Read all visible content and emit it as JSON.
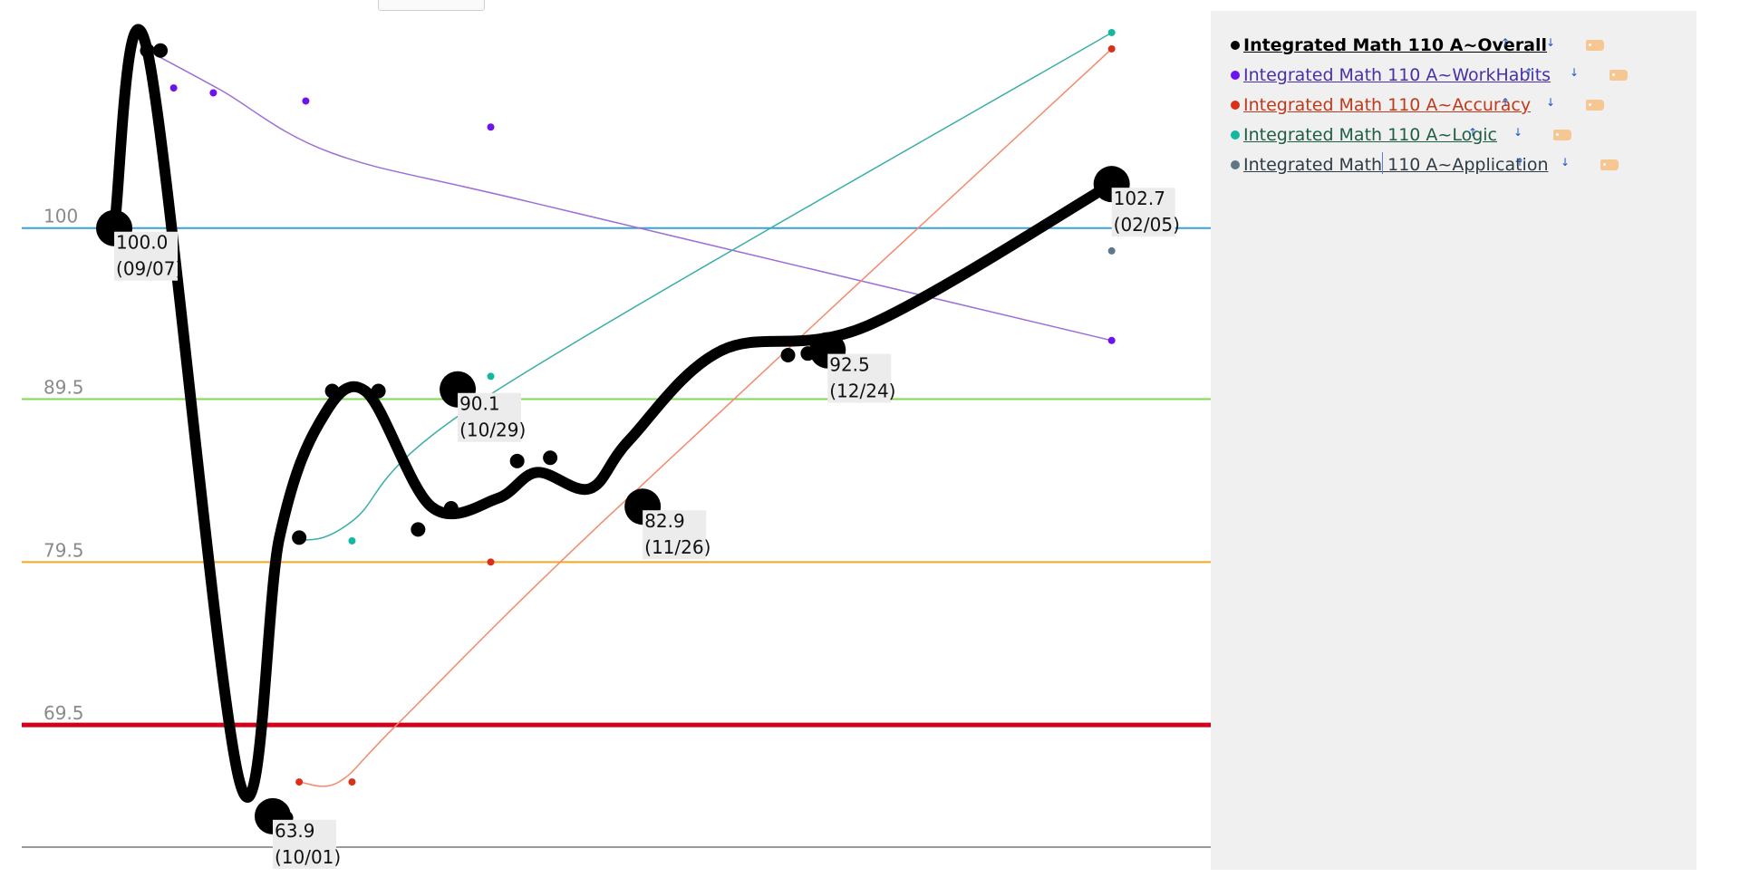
{
  "chart_data": {
    "type": "line",
    "y_range": [
      62,
      114
    ],
    "x_range": [
      "2023-08-24",
      "2024-02-20"
    ],
    "grade_lines": [
      {
        "value": 100,
        "label": "100",
        "color": "#3aa0d8",
        "width": 2
      },
      {
        "value": 89.5,
        "label": "89.5",
        "color": "#7ed957",
        "width": 2
      },
      {
        "value": 79.5,
        "label": "79.5",
        "color": "#f5a623",
        "width": 2
      },
      {
        "value": 69.5,
        "label": "69.5",
        "color": "#d0021b",
        "width": 5
      }
    ],
    "series": [
      {
        "name": "Integrated Math 110 A~Overall",
        "color": "#000000",
        "line_width": 12,
        "curve": [
          [
            "2023-09-07",
            100.0
          ],
          [
            "2023-09-12",
            110.9
          ],
          [
            "2023-09-26",
            66.0
          ],
          [
            "2023-10-02",
            81.0
          ],
          [
            "2023-10-08",
            88.0
          ],
          [
            "2023-10-15",
            90.0
          ],
          [
            "2023-10-25",
            82.9
          ],
          [
            "2023-11-04",
            83.4
          ],
          [
            "2023-11-10",
            85.0
          ],
          [
            "2023-11-18",
            84.0
          ],
          [
            "2023-11-24",
            87.0
          ],
          [
            "2023-12-08",
            92.5
          ],
          [
            "2023-12-30",
            94.0
          ],
          [
            "2024-02-05",
            102.7
          ]
        ],
        "points": [
          [
            "2023-09-12",
            110.9
          ],
          [
            "2023-09-14",
            110.9
          ],
          [
            "2023-10-03",
            63.8
          ],
          [
            "2023-10-05",
            81.0
          ],
          [
            "2023-10-10",
            90.0
          ],
          [
            "2023-10-17",
            90.0
          ],
          [
            "2023-10-23",
            81.5
          ],
          [
            "2023-10-28",
            82.8
          ],
          [
            "2023-11-03",
            89.4
          ],
          [
            "2023-11-07",
            85.7
          ],
          [
            "2023-11-12",
            85.9
          ],
          [
            "2023-12-18",
            92.2
          ],
          [
            "2023-12-21",
            92.3
          ]
        ],
        "callouts": [
          {
            "date": "2023-09-07",
            "value": 100.0,
            "label": "100.0",
            "date_label": "(09/07)"
          },
          {
            "date": "2023-10-01",
            "value": 63.9,
            "label": "63.9",
            "date_label": "(10/01)"
          },
          {
            "date": "2023-10-29",
            "value": 90.1,
            "label": "90.1",
            "date_label": "(10/29)"
          },
          {
            "date": "2023-11-26",
            "value": 82.9,
            "label": "82.9",
            "date_label": "(11/26)"
          },
          {
            "date": "2023-12-24",
            "value": 92.5,
            "label": "92.5",
            "date_label": "(12/24)"
          },
          {
            "date": "2024-02-05",
            "value": 102.7,
            "label": "102.7",
            "date_label": "(02/05)"
          }
        ]
      },
      {
        "name": "Integrated Math 110 A~WorkHabits",
        "color": "#6f12f0",
        "curve_color": "#9b6fd6",
        "line_width": 1.5,
        "curve": [
          [
            "2023-09-12",
            110.9
          ],
          [
            "2023-09-23",
            108.5
          ],
          [
            "2023-10-10",
            104.6
          ],
          [
            "2023-11-10",
            101.5
          ],
          [
            "2024-02-05",
            93.1
          ]
        ],
        "points": [
          [
            "2023-09-12",
            110.9
          ],
          [
            "2023-09-16",
            108.6
          ],
          [
            "2023-09-22",
            108.3
          ],
          [
            "2023-10-06",
            107.8
          ],
          [
            "2023-11-03",
            106.2
          ],
          [
            "2024-02-05",
            93.1
          ]
        ]
      },
      {
        "name": "Integrated Math 110 A~Accuracy",
        "color": "#d9301a",
        "curve_color": "#f28a6e",
        "line_width": 1.5,
        "curve": [
          [
            "2023-10-05",
            66.0
          ],
          [
            "2023-10-11",
            66.0
          ],
          [
            "2023-10-20",
            69.6
          ],
          [
            "2023-11-20",
            82.0
          ],
          [
            "2024-02-05",
            111.0
          ]
        ],
        "points": [
          [
            "2023-10-05",
            66.0
          ],
          [
            "2023-10-13",
            66.0
          ],
          [
            "2023-11-03",
            79.5
          ],
          [
            "2024-02-05",
            111.0
          ]
        ]
      },
      {
        "name": "Integrated Math 110 A~Logic",
        "color": "#12b8a0",
        "curve_color": "#3aafa9",
        "line_width": 1.5,
        "curve": [
          [
            "2023-10-05",
            80.8
          ],
          [
            "2023-10-13",
            82.0
          ],
          [
            "2023-11-03",
            89.8
          ],
          [
            "2024-02-05",
            112.0
          ]
        ],
        "points": [
          [
            "2023-10-05",
            80.8
          ],
          [
            "2023-10-13",
            80.8
          ],
          [
            "2023-11-03",
            90.9
          ],
          [
            "2024-02-05",
            112.0
          ]
        ]
      },
      {
        "name": "Integrated Math 110 A~Application",
        "color": "#5f7888",
        "line_width": 0,
        "curve": [],
        "points": [
          [
            "2024-02-05",
            98.6
          ]
        ]
      }
    ]
  },
  "legend": {
    "items": [
      {
        "label": "Integrated Math 110 A~Overall",
        "dot_color": "#000000",
        "text_color": "#000000",
        "bold": true
      },
      {
        "label": "Integrated Math 110 A~WorkHabits",
        "dot_color": "#6f12f0",
        "text_color": "#4b2fa8",
        "bold": false
      },
      {
        "label": "Integrated Math 110 A~Accuracy",
        "dot_color": "#d9301a",
        "text_color": "#c0391b",
        "bold": false
      },
      {
        "label": "Integrated Math 110 A~Logic",
        "dot_color": "#12b8a0",
        "text_color": "#1e5e45",
        "bold": false
      },
      {
        "label": "Integrated Math 110 A~Application",
        "dot_color": "#5f7888",
        "text_color": "#2e3b45",
        "bold": false
      }
    ],
    "up_icon": "arrow-up-icon",
    "down_icon": "arrow-down-icon",
    "tag_icon": "tag-icon"
  }
}
